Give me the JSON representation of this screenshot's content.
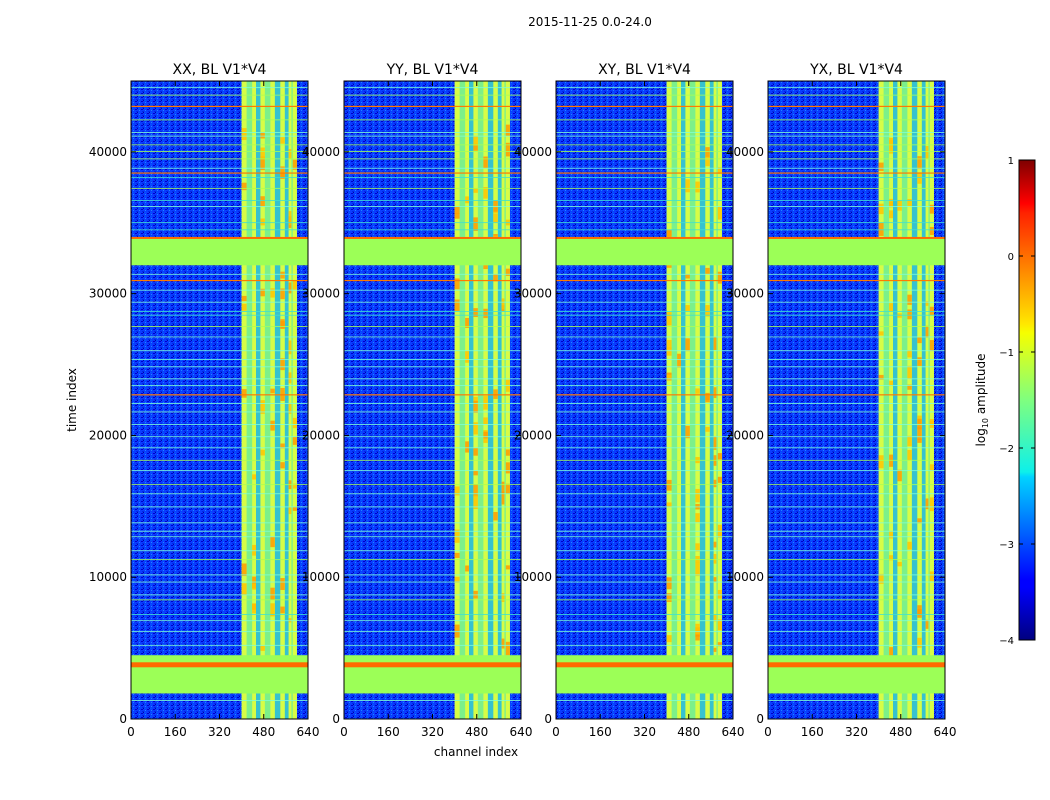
{
  "figure": {
    "suptitle": "2015-11-25 0.0-24.0",
    "xlabel": "channel index",
    "ylabel": "time index"
  },
  "chart_data": {
    "type": "heatmap",
    "title": "2015-11-25 0.0-24.0",
    "xlabel": "channel index",
    "ylabel": "time index",
    "xlim": [
      0,
      640
    ],
    "ylim": [
      0,
      45000
    ],
    "xticks": [
      0,
      160,
      320,
      480,
      640
    ],
    "yticks": [
      0,
      10000,
      20000,
      30000,
      40000
    ],
    "panels": [
      {
        "title": "XX, BL V1*V4"
      },
      {
        "title": "YY, BL V1*V4"
      },
      {
        "title": "XY, BL V1*V4"
      },
      {
        "title": "YX, BL V1*V4"
      }
    ],
    "colorbar": {
      "label": "log",
      "label_sub": "10",
      "label_suffix": " amplitude",
      "min": -4,
      "max": 1,
      "ticks": [
        1,
        0,
        -1,
        -2,
        -3,
        -4
      ],
      "tick_labels": [
        "1",
        "0",
        "−1",
        "−2",
        "−3",
        "−4"
      ],
      "colormap": "jet"
    },
    "features": {
      "bright_channel_band": [
        400,
        600
      ],
      "flagged_time_blocks": [
        [
          1800,
          4500
        ],
        [
          32000,
          34000
        ]
      ]
    }
  }
}
